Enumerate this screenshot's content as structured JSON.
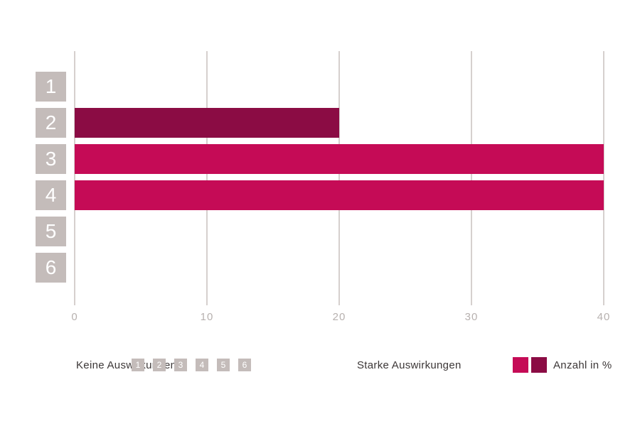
{
  "chart_data": {
    "type": "bar",
    "orientation": "horizontal",
    "title": "",
    "categories": [
      "1",
      "2",
      "3",
      "4",
      "5",
      "6"
    ],
    "values": [
      0,
      20,
      40,
      40,
      0,
      0
    ],
    "bar_colors": [
      "#c50b56",
      "#8b0c44",
      "#c50b56",
      "#c50b56",
      "#c50b56",
      "#c50b56"
    ],
    "xlabel": "",
    "ylabel": "",
    "xlim": [
      0,
      40
    ],
    "x_ticks": [
      "0",
      "10",
      "20",
      "30",
      "40"
    ],
    "grid": "vertical-only",
    "legend_position": "bottom"
  },
  "legend": {
    "scale_min_label": "Keine Auswirkungen",
    "scale_boxes": [
      "1",
      "2",
      "3",
      "4",
      "5",
      "6"
    ],
    "scale_max_label": "Starke Auswirkungen",
    "series_swatch_colors": [
      "#c50b56",
      "#8b0c44"
    ],
    "series_label": "Anzahl in %"
  },
  "colors": {
    "bar_pink": "#c50b56",
    "bar_dark": "#8b0c44",
    "axis_box_gray": "#c4bcba",
    "gridline": "#d6d0ce",
    "tick_text": "#b7b1af",
    "legend_text": "#3c3737",
    "background": "#ffffff"
  }
}
